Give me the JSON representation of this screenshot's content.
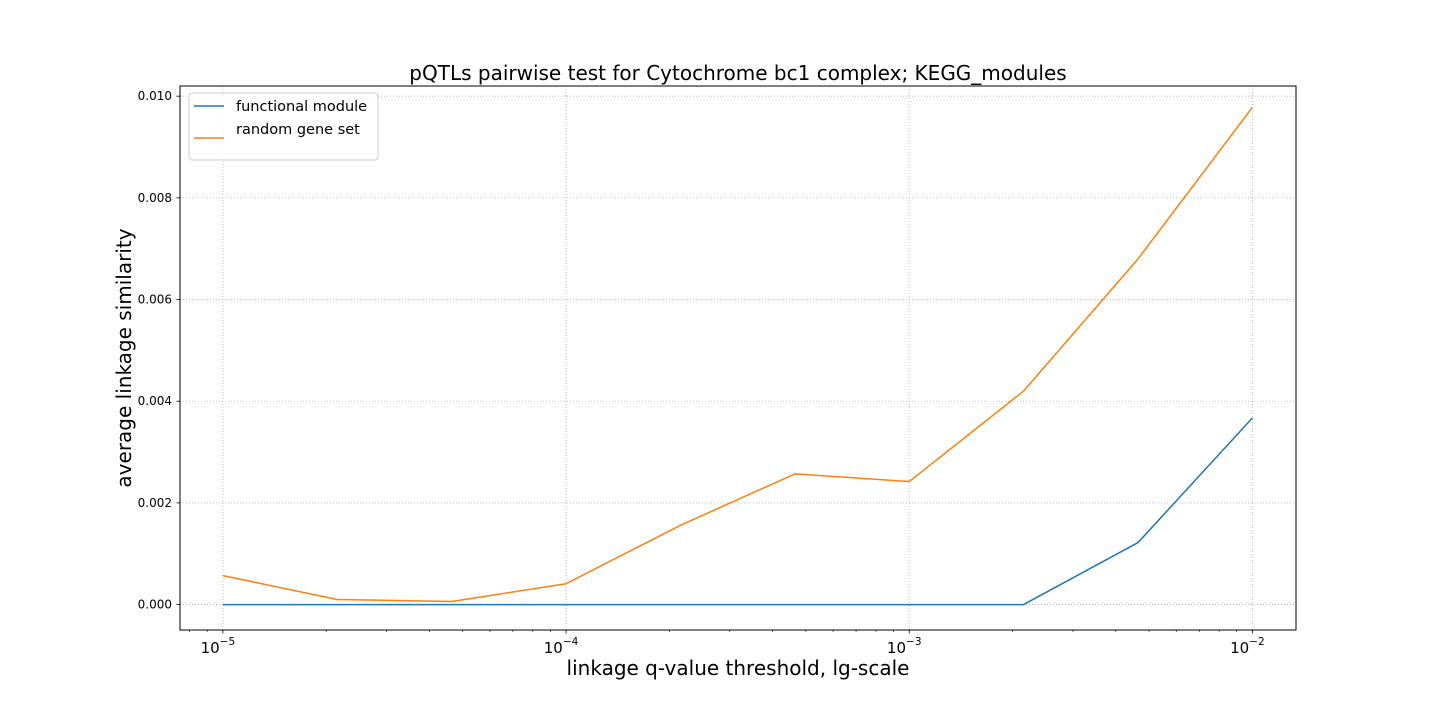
{
  "chart_data": {
    "type": "line",
    "title": "pQTLs pairwise test for Cytochrome bc1 complex; KEGG_modules",
    "xlabel": "linkage q-value threshold, lg-scale",
    "ylabel": "average linkage similarity",
    "xscale": "log",
    "xlim": [
      7.5e-06,
      0.0134
    ],
    "ylim": [
      -0.0005,
      0.0102
    ],
    "grid": true,
    "legend_position": "top-left",
    "x": [
      1e-05,
      2.154e-05,
      4.642e-05,
      0.0001,
      0.0002154,
      0.0004642,
      0.001,
      0.002154,
      0.004642,
      0.01
    ],
    "x_ticks": [
      {
        "value": 1e-05,
        "base": "10",
        "exp": "−5"
      },
      {
        "value": 0.0001,
        "base": "10",
        "exp": "−4"
      },
      {
        "value": 0.001,
        "base": "10",
        "exp": "−3"
      },
      {
        "value": 0.01,
        "base": "10",
        "exp": "−2"
      }
    ],
    "y_ticks": [
      {
        "value": 0.0,
        "label": "0.000"
      },
      {
        "value": 0.002,
        "label": "0.002"
      },
      {
        "value": 0.004,
        "label": "0.004"
      },
      {
        "value": 0.006,
        "label": "0.006"
      },
      {
        "value": 0.008,
        "label": "0.008"
      },
      {
        "value": 0.01,
        "label": "0.010"
      }
    ],
    "series": [
      {
        "name": "functional module",
        "color": "#1f77b4",
        "values": [
          0.0,
          0.0,
          0.0,
          0.0,
          0.0,
          0.0,
          0.0,
          0.0,
          0.00122,
          0.00367
        ]
      },
      {
        "name": "random gene set",
        "color": "#ff7f0e",
        "values": [
          0.00057,
          0.0001,
          6e-05,
          0.00041,
          0.00156,
          0.00257,
          0.00242,
          0.0042,
          0.0068,
          0.00978
        ]
      }
    ]
  }
}
